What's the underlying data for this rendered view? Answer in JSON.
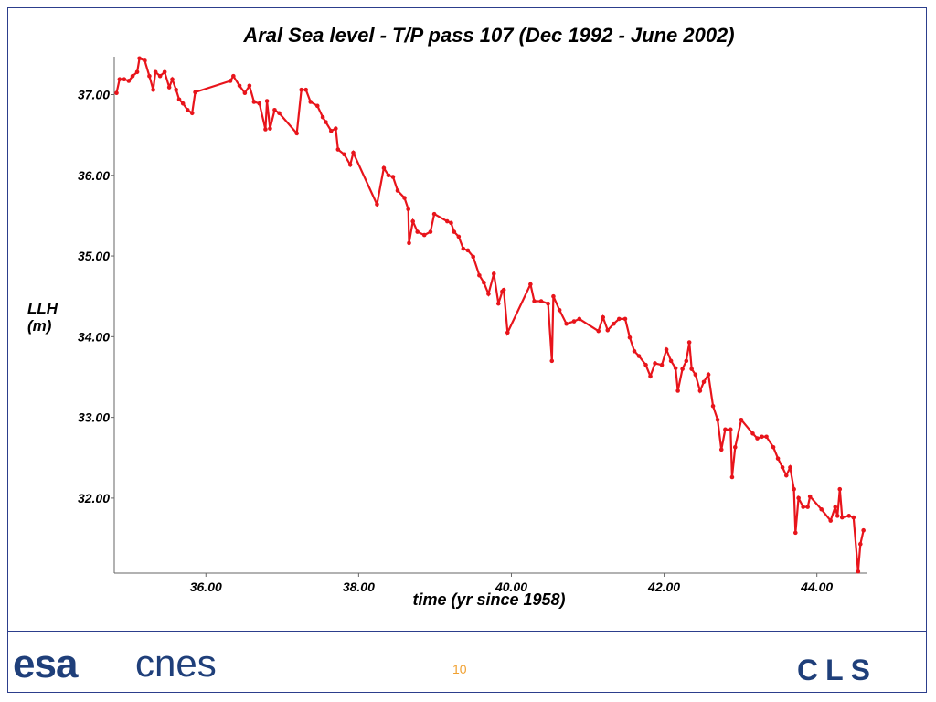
{
  "chart_data": {
    "type": "line",
    "title": "Aral Sea level - T/P pass 107 (Dec 1992 - June 2002)",
    "xlabel": "time (yr since 1958)",
    "ylabel": "LLH (m)",
    "color": "#e8141b",
    "x": [
      34.83,
      34.87,
      34.93,
      34.99,
      35.04,
      35.1,
      35.13,
      35.2,
      35.26,
      35.31,
      35.34,
      35.4,
      35.46,
      35.52,
      35.56,
      35.61,
      35.65,
      35.7,
      35.76,
      35.82,
      35.86,
      36.32,
      36.36,
      36.44,
      36.51,
      36.57,
      36.63,
      36.7,
      36.78,
      36.8,
      36.84,
      36.9,
      36.96,
      37.19,
      37.25,
      37.31,
      37.37,
      37.46,
      37.53,
      37.57,
      37.64,
      37.7,
      37.73,
      37.81,
      37.89,
      37.93,
      38.24,
      38.33,
      38.39,
      38.45,
      38.51,
      38.6,
      38.65,
      38.66,
      38.71,
      38.77,
      38.86,
      38.94,
      38.99,
      39.16,
      39.21,
      39.25,
      39.31,
      39.37,
      39.43,
      39.5,
      39.58,
      39.64,
      39.7,
      39.77,
      39.83,
      39.88,
      39.9,
      39.95,
      40.25,
      40.3,
      40.39,
      40.48,
      40.53,
      40.55,
      40.63,
      40.72,
      40.82,
      40.89,
      41.14,
      41.2,
      41.26,
      41.34,
      41.41,
      41.49,
      41.55,
      41.61,
      41.67,
      41.76,
      41.82,
      41.88,
      41.97,
      42.03,
      42.09,
      42.15,
      42.18,
      42.24,
      42.29,
      42.33,
      42.36,
      42.41,
      42.47,
      42.52,
      42.58,
      42.64,
      42.7,
      42.75,
      42.8,
      42.87,
      42.89,
      42.93,
      43.01,
      43.16,
      43.22,
      43.28,
      43.34,
      43.43,
      43.49,
      43.55,
      43.6,
      43.65,
      43.7,
      43.72,
      43.76,
      43.82,
      43.88,
      43.91,
      44.06,
      44.18,
      44.24,
      44.27,
      44.3,
      44.33,
      44.42,
      44.48,
      44.54,
      44.57,
      44.61
    ],
    "values": [
      37.02,
      37.19,
      37.19,
      37.17,
      37.23,
      37.28,
      37.45,
      37.42,
      37.23,
      37.06,
      37.28,
      37.23,
      37.28,
      37.09,
      37.19,
      37.06,
      36.94,
      36.89,
      36.81,
      36.77,
      37.03,
      37.17,
      37.23,
      37.11,
      37.02,
      37.11,
      36.91,
      36.89,
      36.57,
      36.92,
      36.58,
      36.81,
      36.77,
      36.52,
      37.06,
      37.06,
      36.91,
      36.86,
      36.72,
      36.66,
      36.55,
      36.58,
      36.32,
      36.26,
      36.13,
      36.28,
      35.64,
      36.09,
      36.0,
      35.98,
      35.81,
      35.72,
      35.58,
      35.16,
      35.43,
      35.3,
      35.26,
      35.3,
      35.52,
      35.43,
      35.41,
      35.3,
      35.24,
      35.09,
      35.07,
      34.99,
      34.76,
      34.67,
      34.53,
      34.78,
      34.41,
      34.56,
      34.58,
      34.05,
      34.65,
      34.44,
      34.44,
      34.41,
      33.7,
      34.5,
      34.33,
      34.16,
      34.19,
      34.22,
      34.07,
      34.24,
      34.08,
      34.16,
      34.22,
      34.22,
      33.99,
      33.82,
      33.76,
      33.65,
      33.51,
      33.67,
      33.65,
      33.84,
      33.7,
      33.61,
      33.33,
      33.6,
      33.7,
      33.93,
      33.6,
      33.53,
      33.33,
      33.44,
      33.53,
      33.14,
      32.97,
      32.6,
      32.85,
      32.85,
      32.26,
      32.63,
      32.97,
      32.8,
      32.74,
      32.76,
      32.76,
      32.63,
      32.49,
      32.38,
      32.28,
      32.38,
      32.11,
      31.57,
      32.0,
      31.89,
      31.89,
      32.02,
      31.86,
      31.72,
      31.89,
      31.78,
      32.11,
      31.76,
      31.78,
      31.76,
      31.09,
      31.43,
      31.6
    ],
    "xlim": [
      34.8,
      44.65
    ],
    "ylim": [
      31.07,
      37.47
    ],
    "xticks": [
      {
        "value": 36,
        "label": "36.00"
      },
      {
        "value": 38,
        "label": "38.00"
      },
      {
        "value": 40,
        "label": "40.00"
      },
      {
        "value": 42,
        "label": "42.00"
      },
      {
        "value": 44,
        "label": "44.00"
      }
    ],
    "yticks": [
      {
        "value": 32,
        "label": "32.00"
      },
      {
        "value": 33,
        "label": "33.00"
      },
      {
        "value": 34,
        "label": "34.00"
      },
      {
        "value": 35,
        "label": "35.00"
      },
      {
        "value": 36,
        "label": "36.00"
      },
      {
        "value": 37,
        "label": "37.00"
      }
    ]
  },
  "footer": {
    "page_number": "10",
    "logo_esa": "esa",
    "logo_cnes": "cnes",
    "logo_cls": "CLS"
  }
}
